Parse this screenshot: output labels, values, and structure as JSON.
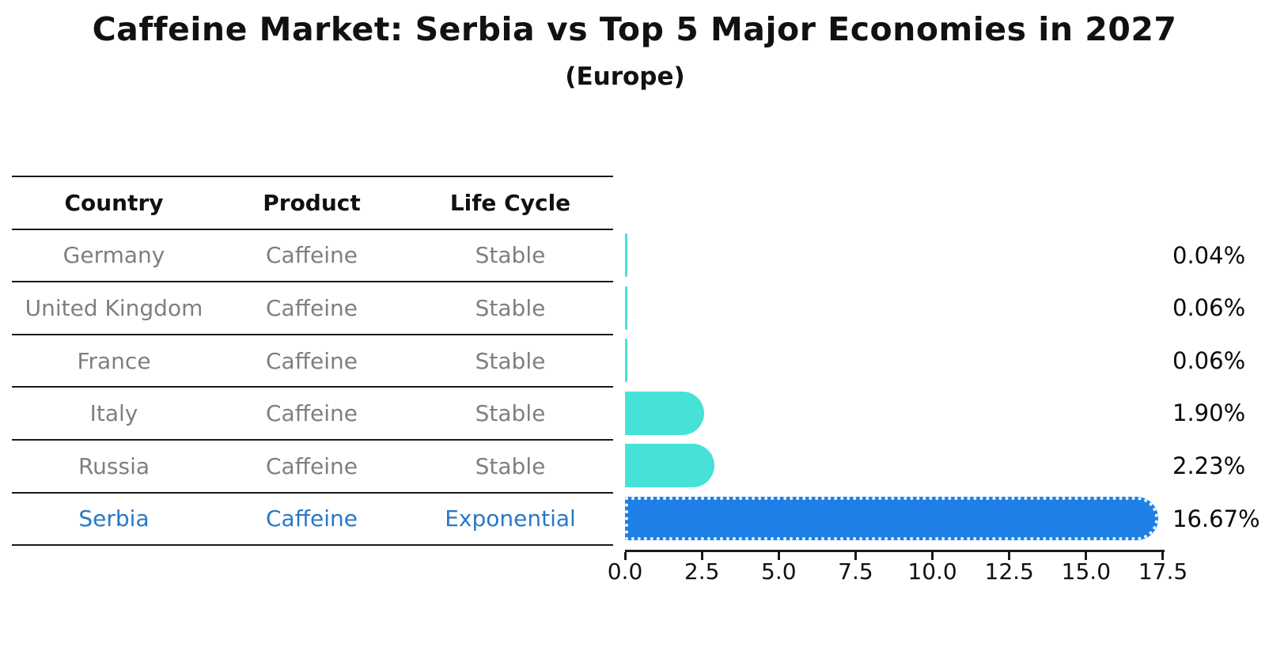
{
  "title": "Caffeine Market: Serbia vs Top 5 Major Economies in 2027",
  "subtitle": "(Europe)",
  "table": {
    "headers": [
      "Country",
      "Product",
      "Life Cycle"
    ],
    "rows": [
      {
        "country": "Germany",
        "product": "Caffeine",
        "life_cycle": "Stable",
        "highlight": false
      },
      {
        "country": "United Kingdom",
        "product": "Caffeine",
        "life_cycle": "Stable",
        "highlight": false
      },
      {
        "country": "France",
        "product": "Caffeine",
        "life_cycle": "Stable",
        "highlight": false
      },
      {
        "country": "Italy",
        "product": "Caffeine",
        "life_cycle": "Stable",
        "highlight": false
      },
      {
        "country": "Russia",
        "product": "Caffeine",
        "life_cycle": "Stable",
        "highlight": false
      },
      {
        "country": "Serbia",
        "product": "Caffeine",
        "life_cycle": "Exponential",
        "highlight": true
      }
    ]
  },
  "chart_data": {
    "type": "bar",
    "orientation": "horizontal",
    "title": "Caffeine Market: Serbia vs Top 5 Major Economies in 2027",
    "subtitle": "(Europe)",
    "categories": [
      "Germany",
      "United Kingdom",
      "France",
      "Italy",
      "Russia",
      "Serbia"
    ],
    "values": [
      0.04,
      0.06,
      0.06,
      1.9,
      2.23,
      16.67
    ],
    "value_labels": [
      "0.04%",
      "0.06%",
      "0.06%",
      "1.90%",
      "2.23%",
      "16.67%"
    ],
    "highlight_category": "Serbia",
    "xlim": [
      0,
      17.5
    ],
    "x_ticks": [
      0.0,
      2.5,
      5.0,
      7.5,
      10.0,
      12.5,
      15.0,
      17.5
    ],
    "x_tick_labels": [
      "0.0",
      "2.5",
      "5.0",
      "7.5",
      "10.0",
      "12.5",
      "15.0",
      "17.5"
    ],
    "grid": false,
    "legend": null,
    "colors": {
      "bar_default": "#46e2d8",
      "bar_highlight": "#1e80e6",
      "row_text": "#7f7f7f",
      "highlight_text": "#2878c8",
      "axis": "#1a1a1a"
    }
  }
}
